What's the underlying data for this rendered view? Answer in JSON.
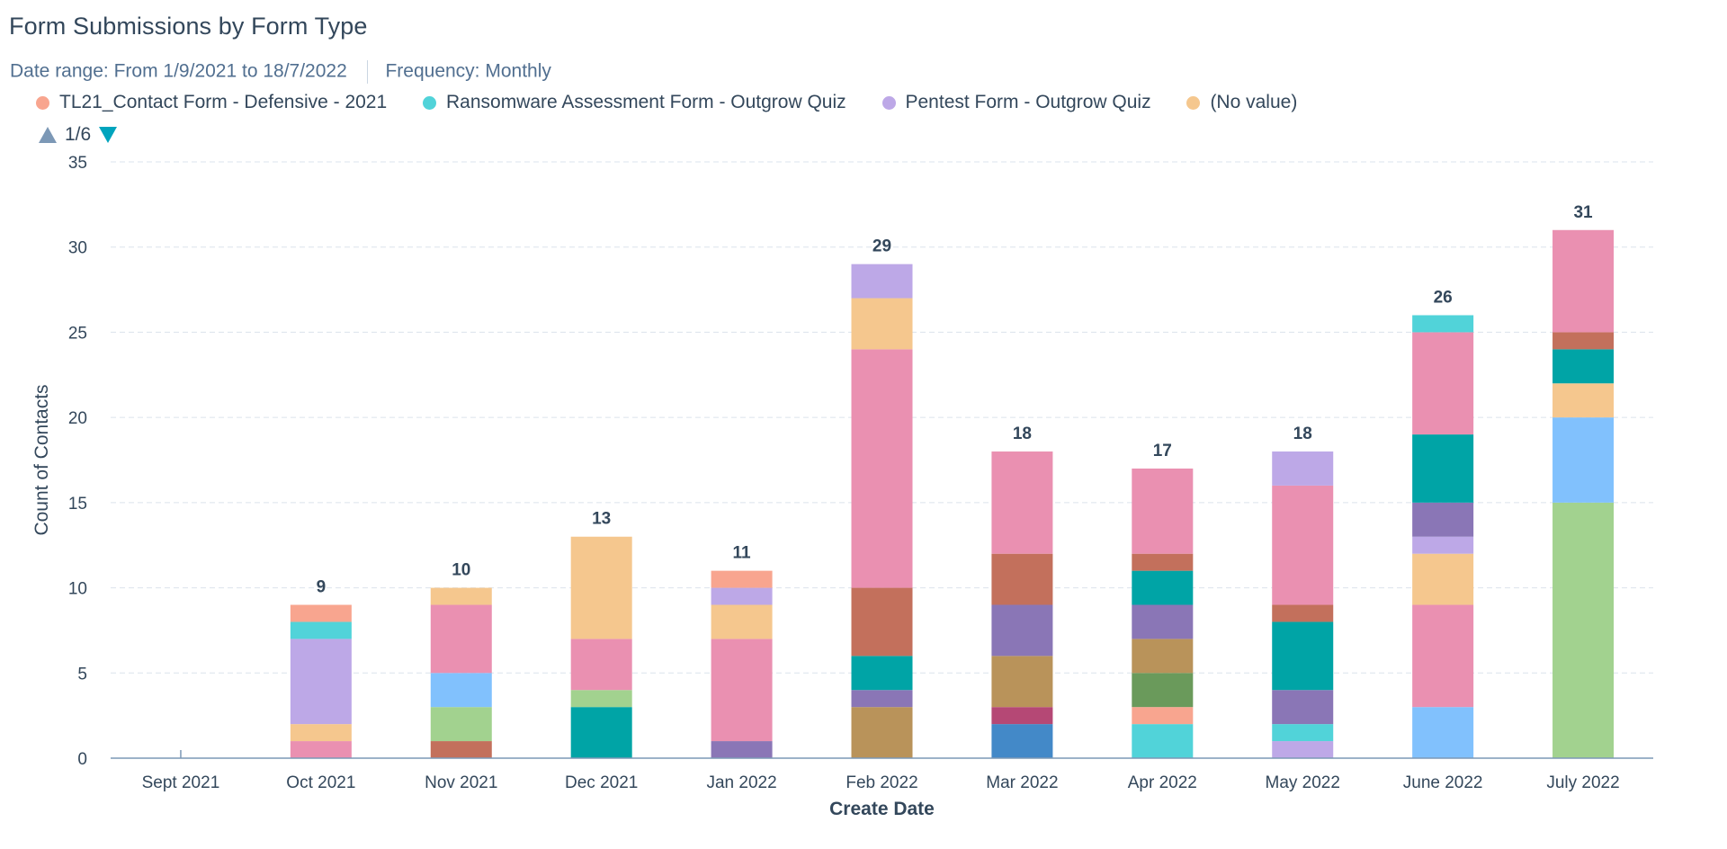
{
  "header": {
    "title": "Form Submissions by Form Type",
    "date_range_label": "Date range:",
    "date_range_value": "From 1/9/2021 to 18/7/2022",
    "frequency_label": "Frequency:",
    "frequency_value": "Monthly"
  },
  "legend": {
    "items": [
      {
        "label": "TL21_Contact Form - Defensive - 2021",
        "color": "#f8a58f"
      },
      {
        "label": "Ransomware Assessment Form - Outgrow Quiz",
        "color": "#51d3d9"
      },
      {
        "label": "Pentest Form - Outgrow Quiz",
        "color": "#bda8e7"
      },
      {
        "label": "(No value)",
        "color": "#f5c78e"
      }
    ],
    "page": "1/6",
    "prev_icon": "triangle-up-icon",
    "next_icon": "triangle-down-icon"
  },
  "chart_data": {
    "type": "bar",
    "stacked": true,
    "xlabel": "Create Date",
    "ylabel": "Count of Contacts",
    "ylim": [
      0,
      35
    ],
    "yticks": [
      0,
      5,
      10,
      15,
      20,
      25,
      30,
      35
    ],
    "grid": true,
    "categories": [
      "Sept 2021",
      "Oct 2021",
      "Nov 2021",
      "Dec 2021",
      "Jan 2022",
      "Feb 2022",
      "Mar 2022",
      "Apr 2022",
      "May 2022",
      "June 2022",
      "July 2022"
    ],
    "totals": [
      "",
      "9",
      "10",
      "13",
      "11",
      "29",
      "18",
      "17",
      "18",
      "26",
      "31"
    ],
    "stacks": [
      [],
      [
        {
          "value": 1,
          "color": "#ea90b1"
        },
        {
          "value": 1,
          "color": "#f5c78e"
        },
        {
          "value": 5,
          "color": "#bda8e7"
        },
        {
          "value": 1,
          "color": "#51d3d9"
        },
        {
          "value": 1,
          "color": "#f8a58f"
        }
      ],
      [
        {
          "value": 1,
          "color": "#c3705c"
        },
        {
          "value": 2,
          "color": "#a2d28f"
        },
        {
          "value": 2,
          "color": "#81c1fd"
        },
        {
          "value": 4,
          "color": "#ea90b1"
        },
        {
          "value": 1,
          "color": "#f5c78e"
        }
      ],
      [
        {
          "value": 3,
          "color": "#00a4a6"
        },
        {
          "value": 1,
          "color": "#a2d28f"
        },
        {
          "value": 3,
          "color": "#ea90b1"
        },
        {
          "value": 6,
          "color": "#f5c78e"
        }
      ],
      [
        {
          "value": 1,
          "color": "#8a76b6"
        },
        {
          "value": 6,
          "color": "#ea90b1"
        },
        {
          "value": 2,
          "color": "#f5c78e"
        },
        {
          "value": 1,
          "color": "#bda8e7"
        },
        {
          "value": 1,
          "color": "#f8a58f"
        }
      ],
      [
        {
          "value": 3,
          "color": "#b9935a"
        },
        {
          "value": 1,
          "color": "#8a76b6"
        },
        {
          "value": 2,
          "color": "#00a4a6"
        },
        {
          "value": 4,
          "color": "#c3705c"
        },
        {
          "value": 14,
          "color": "#ea90b1"
        },
        {
          "value": 3,
          "color": "#f5c78e"
        },
        {
          "value": 2,
          "color": "#bda8e7"
        }
      ],
      [
        {
          "value": 2,
          "color": "#4389c8"
        },
        {
          "value": 1,
          "color": "#b54875"
        },
        {
          "value": 3,
          "color": "#b9935a"
        },
        {
          "value": 3,
          "color": "#8a76b6"
        },
        {
          "value": 3,
          "color": "#c3705c"
        },
        {
          "value": 6,
          "color": "#ea90b1"
        }
      ],
      [
        {
          "value": 2,
          "color": "#51d3d9"
        },
        {
          "value": 1,
          "color": "#f8a58f"
        },
        {
          "value": 2,
          "color": "#6a9a5b"
        },
        {
          "value": 2,
          "color": "#b9935a"
        },
        {
          "value": 2,
          "color": "#8a76b6"
        },
        {
          "value": 2,
          "color": "#00a4a6"
        },
        {
          "value": 1,
          "color": "#c3705c"
        },
        {
          "value": 5,
          "color": "#ea90b1"
        }
      ],
      [
        {
          "value": 1,
          "color": "#bda8e7"
        },
        {
          "value": 1,
          "color": "#51d3d9"
        },
        {
          "value": 2,
          "color": "#8a76b6"
        },
        {
          "value": 4,
          "color": "#00a4a6"
        },
        {
          "value": 1,
          "color": "#c3705c"
        },
        {
          "value": 7,
          "color": "#ea90b1"
        },
        {
          "value": 2,
          "color": "#bda8e7"
        }
      ],
      [
        {
          "value": 3,
          "color": "#81c1fd"
        },
        {
          "value": 6,
          "color": "#ea90b1"
        },
        {
          "value": 3,
          "color": "#f5c78e"
        },
        {
          "value": 1,
          "color": "#bda8e7"
        },
        {
          "value": 2,
          "color": "#8a76b6"
        },
        {
          "value": 4,
          "color": "#00a4a6"
        },
        {
          "value": 6,
          "color": "#ea90b1"
        },
        {
          "value": 1,
          "color": "#51d3d9"
        }
      ],
      [
        {
          "value": 15,
          "color": "#a2d28f"
        },
        {
          "value": 5,
          "color": "#81c1fd"
        },
        {
          "value": 2,
          "color": "#f5c78e"
        },
        {
          "value": 2,
          "color": "#00a4a6"
        },
        {
          "value": 1,
          "color": "#c3705c"
        },
        {
          "value": 6,
          "color": "#ea90b1"
        }
      ]
    ]
  }
}
